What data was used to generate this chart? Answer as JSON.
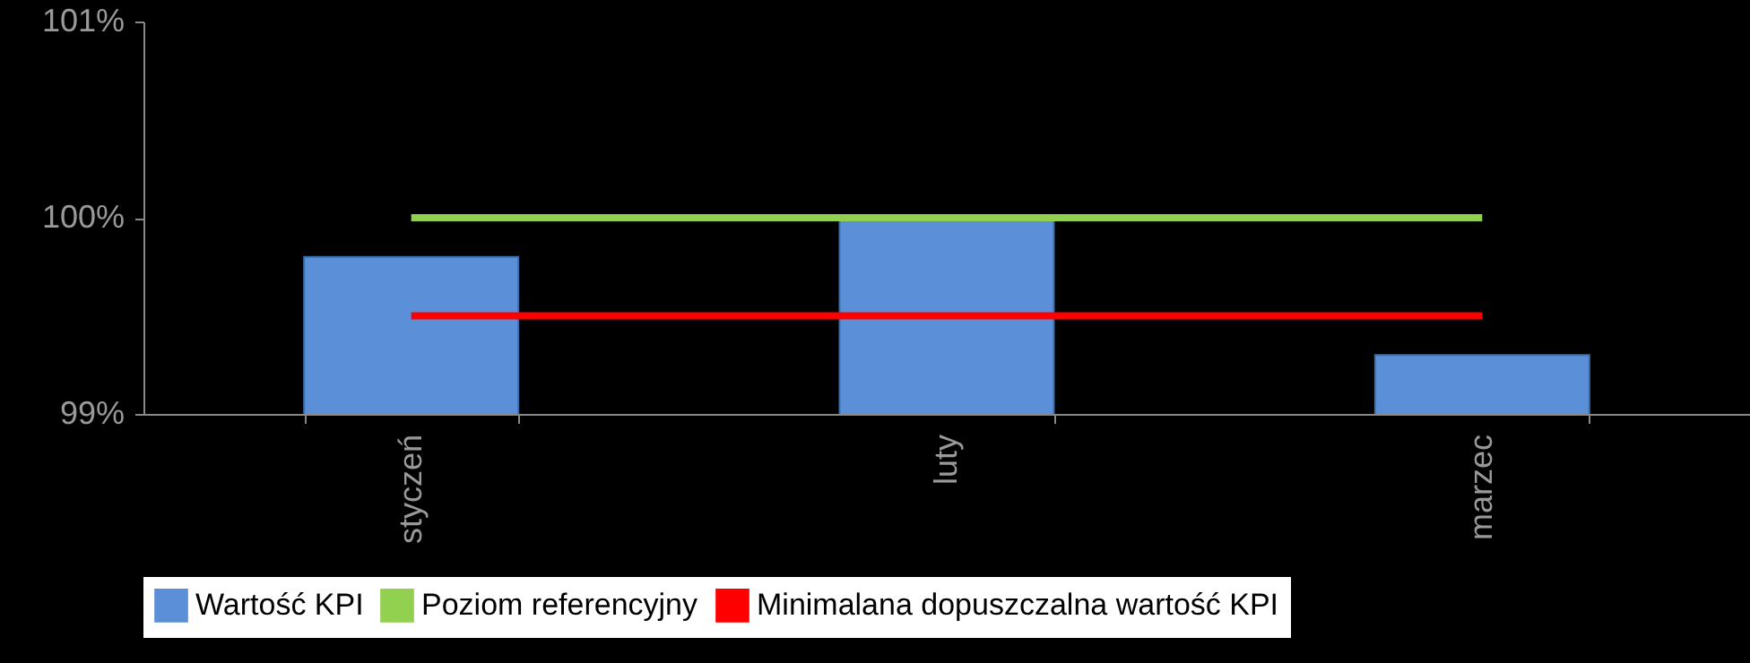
{
  "chart_data": {
    "type": "bar",
    "categories": [
      "styczeń",
      "luty",
      "marzec"
    ],
    "series": [
      {
        "name": "Wartość KPI",
        "color": "#5b8fd8",
        "values": [
          99.8,
          100,
          99.3
        ]
      },
      {
        "name": "Poziom referencyjny",
        "type": "line",
        "color": "#92d050",
        "values": [
          100,
          100,
          100
        ]
      },
      {
        "name": "Minimalana dopuszczalna wartość KPI",
        "type": "line",
        "color": "#ff0000",
        "values": [
          99.5,
          99.5,
          99.5
        ]
      }
    ],
    "ylim": [
      99,
      101
    ],
    "yticks": [
      {
        "value": 99,
        "label": "99%"
      },
      {
        "value": 100,
        "label": "100%"
      },
      {
        "value": 101,
        "label": "101%"
      }
    ],
    "legend": "bottom"
  }
}
